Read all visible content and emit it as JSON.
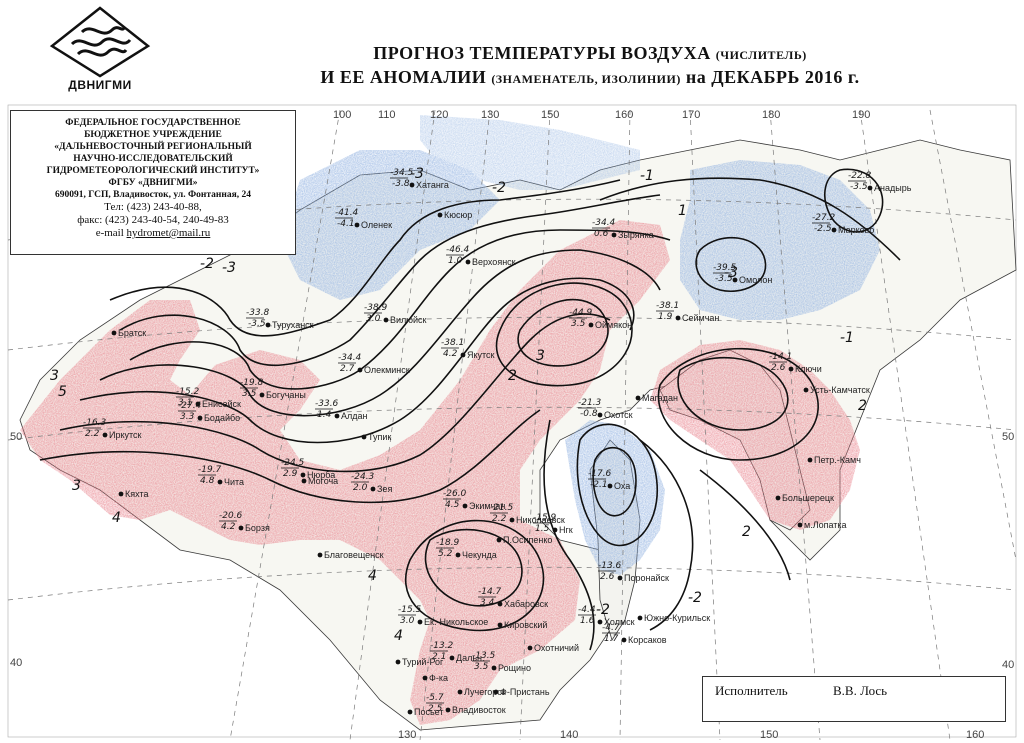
{
  "logo": {
    "name": "ДВНИГМИ",
    "icon": "wave-logo-icon"
  },
  "title": {
    "line1_main": "ПРОГНОЗ ТЕМПЕРАТУРЫ ВОЗДУХА",
    "line1_note": "(ЧИСЛИТЕЛЬ)",
    "line2_main": "И ЕЕ АНОМАЛИИ",
    "line2_note": "(ЗНАМЕНАТЕЛЬ, ИЗОЛИНИИ)",
    "line2_period": "на ДЕКАБРЬ 2016 г."
  },
  "organization": {
    "line1": "ФЕДЕРАЛЬНОЕ ГОСУДАРСТВЕННОЕ",
    "line2": "БЮДЖЕТНОЕ УЧРЕЖДЕНИЕ",
    "line3": "«ДАЛЬНЕВОСТОЧНЫЙ РЕГИОНАЛЬНЫЙ",
    "line4": "НАУЧНО-ИССЛЕДОВАТЕЛЬСКИЙ",
    "line5": "ГИДРОМЕТЕОРОЛОГИЧЕСКИЙ ИНСТИТУТ»",
    "line6": "ФГБУ «ДВНИГМИ»",
    "address": "690091, ГСП, Владивосток, ул. Фонтанная, 24",
    "phone": "Тел: (423) 243-40-88,",
    "fax": "факс: (423) 243-40-54,  240-49-83",
    "email_label": "e-mail",
    "email": "hydromet@mail.ru"
  },
  "executor": {
    "role": "Исполнитель",
    "name": "В.В. Лось"
  },
  "grid_labels": {
    "lon_top": [
      "100",
      "110",
      "120",
      "130",
      "150",
      "160",
      "170",
      "180",
      "190"
    ],
    "lon_bottom": [
      "130",
      "140",
      "150",
      "160"
    ],
    "lat_left": [
      "50",
      "40"
    ],
    "lat_right": [
      "50",
      "40"
    ]
  },
  "colors": {
    "warm_anomaly": "#e8828c",
    "cold_anomaly": "#8fb0e0",
    "isoline": "#111111",
    "grid": "#7a7a7a"
  },
  "isoline_labels": [
    "-1",
    "-2",
    "-3",
    "-3",
    "-2",
    "1",
    "2",
    "3",
    "4",
    "2",
    "3",
    "4",
    "-1",
    "-2",
    "2",
    "3",
    "4",
    "5",
    "-3",
    "-2"
  ],
  "stations": [
    {
      "name": "Оленек",
      "temp": "-41.4",
      "anom": "-4.1"
    },
    {
      "name": "Хатанга",
      "temp": "-34.5",
      "anom": "-3.8"
    },
    {
      "name": "Кюсюр",
      "temp": "",
      "anom": ""
    },
    {
      "name": "Верхоянск",
      "temp": "-46.4",
      "anom": "1.0"
    },
    {
      "name": "Зырянка",
      "temp": "-34.4",
      "anom": "0.6"
    },
    {
      "name": "Анадырь",
      "temp": "-22.8",
      "anom": "-3.5"
    },
    {
      "name": "Марково",
      "temp": "-27.2",
      "anom": "-2.5"
    },
    {
      "name": "Омолон",
      "temp": "-39.5",
      "anom": "-3.5"
    },
    {
      "name": "Вилюйск",
      "temp": "-38.9",
      "anom": "3.0"
    },
    {
      "name": "Оймякон",
      "temp": "-44.9",
      "anom": "3.5"
    },
    {
      "name": "Сеймчан",
      "temp": "-38.1",
      "anom": "1.9"
    },
    {
      "name": "Туруханск",
      "temp": "-33.8",
      "anom": "-3.5"
    },
    {
      "name": "Олекминск",
      "temp": "-34.4",
      "anom": "2.7"
    },
    {
      "name": "Якутск",
      "temp": "-38.1",
      "anom": "4.2"
    },
    {
      "name": "Охотск",
      "temp": "-21.3",
      "anom": "-0.8"
    },
    {
      "name": "Магадан",
      "temp": "",
      "anom": ""
    },
    {
      "name": "Богучаны",
      "temp": "-19.8",
      "anom": "3.5"
    },
    {
      "name": "Алдан",
      "temp": "-33.6",
      "anom": "1.4"
    },
    {
      "name": "Нюрба",
      "temp": "-24.5",
      "anom": "2.9"
    },
    {
      "name": "Ключи",
      "temp": "-14.1",
      "anom": "2.6"
    },
    {
      "name": "Усть-Камчатск",
      "temp": "",
      "anom": ""
    },
    {
      "name": "Братск",
      "temp": "",
      "anom": ""
    },
    {
      "name": "Енисейск",
      "temp": "-15.2",
      "anom": "3.1"
    },
    {
      "name": "Иркутск",
      "temp": "-16.3",
      "anom": "2.2"
    },
    {
      "name": "Бодайбо",
      "temp": "-27.4",
      "anom": "3.3"
    },
    {
      "name": "Тупик",
      "temp": "",
      "anom": ""
    },
    {
      "name": "Зея",
      "temp": "-24.3",
      "anom": "2.0"
    },
    {
      "name": "Могоча",
      "temp": "",
      "anom": ""
    },
    {
      "name": "Чита",
      "temp": "-19.7",
      "anom": "4.8"
    },
    {
      "name": "Кяхта",
      "temp": "",
      "anom": ""
    },
    {
      "name": "Борзя",
      "temp": "-20.6",
      "anom": "4.2"
    },
    {
      "name": "Экимчан",
      "temp": "-26.0",
      "anom": "4.5"
    },
    {
      "name": "Николаевск",
      "temp": "-21.5",
      "anom": "2.2"
    },
    {
      "name": "Нгк",
      "temp": "-15.9",
      "anom": "1.5"
    },
    {
      "name": "Оха",
      "temp": "-17.6",
      "anom": "-2.1"
    },
    {
      "name": "П.Осипенко",
      "temp": "",
      "anom": ""
    },
    {
      "name": "Чекунда",
      "temp": "-18.9",
      "anom": "5.2"
    },
    {
      "name": "Благовещенск",
      "temp": "",
      "anom": ""
    },
    {
      "name": "Поронайск",
      "temp": "-13.6",
      "anom": "2.6"
    },
    {
      "name": "Хабаровск",
      "temp": "-14.7",
      "anom": "3.4"
    },
    {
      "name": "Кировский",
      "temp": "",
      "anom": ""
    },
    {
      "name": "Холмск",
      "temp": "-4.4",
      "anom": "1.6"
    },
    {
      "name": "Корсаков",
      "temp": "-4.7",
      "anom": "1.7"
    },
    {
      "name": "Южно-Курильск",
      "temp": "",
      "anom": ""
    },
    {
      "name": "Большерецк",
      "temp": "",
      "anom": ""
    },
    {
      "name": "Петр.-Камч",
      "temp": "",
      "anom": ""
    },
    {
      "name": "м.Лопатка",
      "temp": "",
      "anom": ""
    },
    {
      "name": "Ек.-Никольское",
      "temp": "-15.5",
      "anom": "3.0"
    },
    {
      "name": "Охотничий",
      "temp": "",
      "anom": ""
    },
    {
      "name": "Рощино",
      "temp": "-13.5",
      "anom": "3.5"
    },
    {
      "name": "Дальн.",
      "temp": "-13.2",
      "anom": "2.1"
    },
    {
      "name": "Ф-ка",
      "temp": "",
      "anom": ""
    },
    {
      "name": "Лучегорск",
      "temp": "",
      "anom": ""
    },
    {
      "name": "Ф-Пристань",
      "temp": "",
      "anom": ""
    },
    {
      "name": "Владивосток",
      "temp": "-5.7",
      "anom": "2.5"
    },
    {
      "name": "Посьет",
      "temp": "",
      "anom": ""
    },
    {
      "name": "Турий-Рог",
      "temp": "",
      "anom": ""
    }
  ]
}
